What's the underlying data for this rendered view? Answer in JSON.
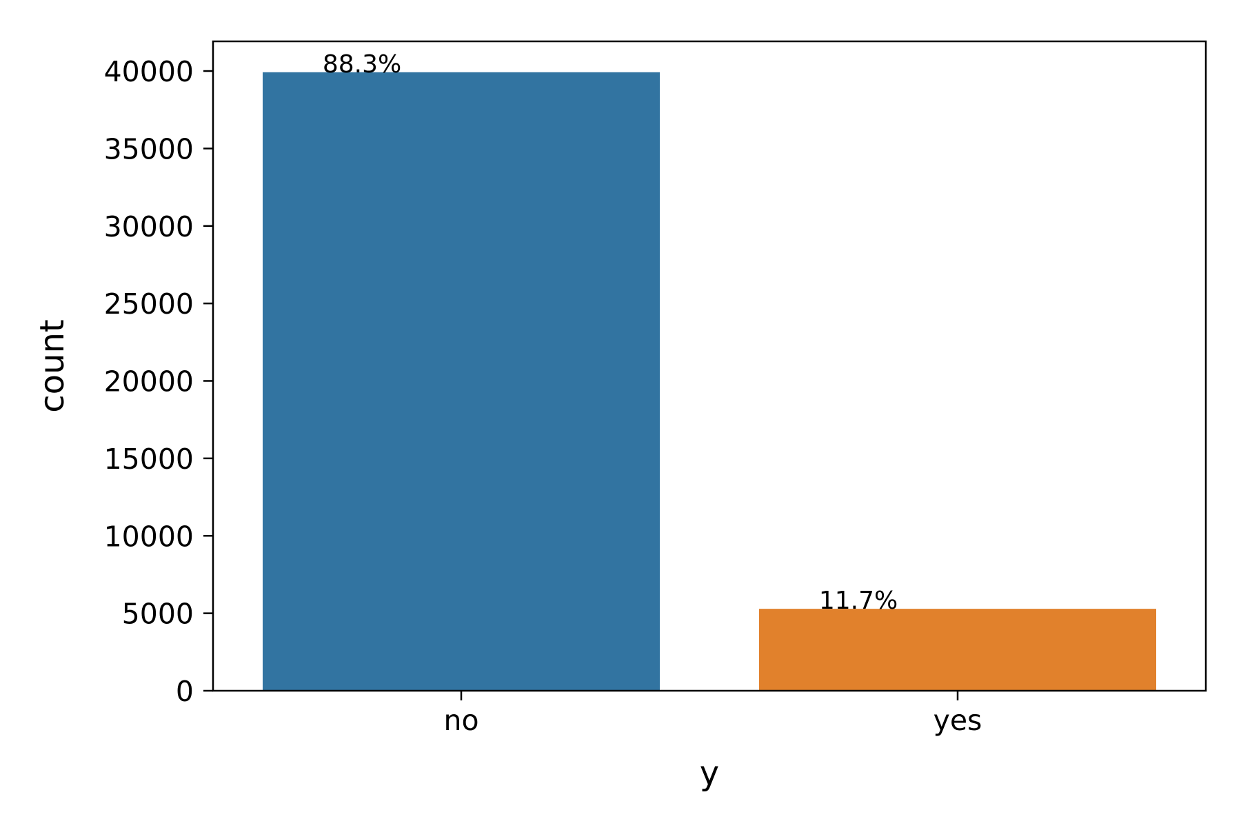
{
  "chart_data": {
    "type": "bar",
    "title": "",
    "xlabel": "y",
    "ylabel": "count",
    "categories": [
      "no",
      "yes"
    ],
    "values": [
      39922,
      5289
    ],
    "bar_labels": [
      "88.3%",
      "11.7%"
    ],
    "colors": [
      "#3274a1",
      "#e1812c"
    ],
    "ylim": [
      0,
      41915
    ],
    "yticks": [
      0,
      5000,
      10000,
      15000,
      20000,
      25000,
      30000,
      35000,
      40000
    ],
    "ytick_labels": [
      "0",
      "5000",
      "10000",
      "15000",
      "20000",
      "25000",
      "30000",
      "35000",
      "40000"
    ],
    "grid": false,
    "legend": "none"
  }
}
